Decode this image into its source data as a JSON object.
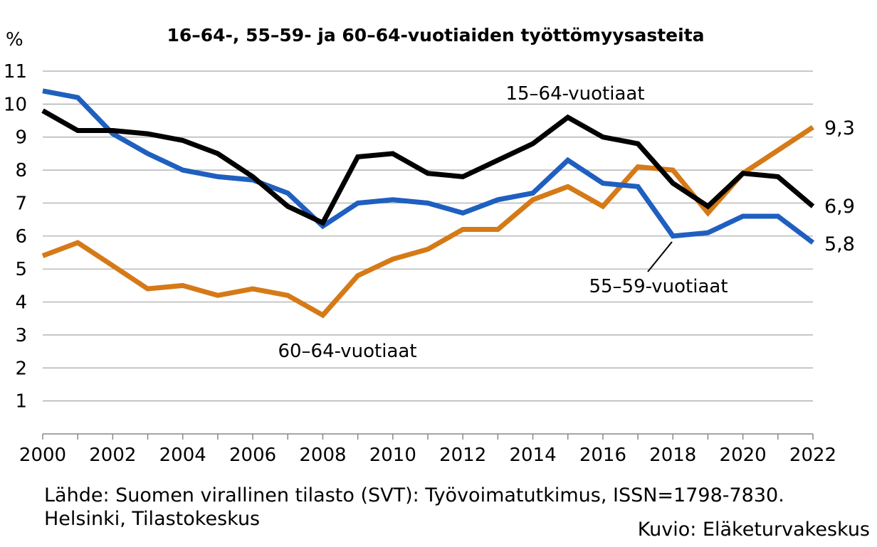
{
  "chart_data": {
    "type": "line",
    "title": "16–64-, 55–59- ja 60–64-vuotiaiden työttömyysasteita",
    "ylabel": "%",
    "xlabel": "",
    "ylim": [
      0,
      11
    ],
    "yticks": [
      "1",
      "2",
      "3",
      "4",
      "5",
      "6",
      "7",
      "8",
      "9",
      "10",
      "11"
    ],
    "xlim": [
      2000,
      2022
    ],
    "xticks": [
      "2000",
      "2002",
      "2004",
      "2006",
      "2008",
      "2010",
      "2012",
      "2014",
      "2016",
      "2018",
      "2020",
      "2022"
    ],
    "grid": true,
    "x": [
      2000,
      2001,
      2002,
      2003,
      2004,
      2005,
      2006,
      2007,
      2008,
      2009,
      2010,
      2011,
      2012,
      2013,
      2014,
      2015,
      2016,
      2017,
      2018,
      2019,
      2020,
      2021,
      2022
    ],
    "series": [
      {
        "name": "15–64-vuotiaat",
        "color": "#000000",
        "values": [
          9.8,
          9.2,
          9.2,
          9.1,
          8.9,
          8.5,
          7.8,
          6.9,
          6.4,
          8.4,
          8.5,
          7.9,
          7.8,
          8.3,
          8.8,
          9.6,
          9.0,
          8.8,
          7.6,
          6.9,
          7.9,
          7.8,
          6.9
        ],
        "end_label": "6,9"
      },
      {
        "name": "55–59-vuotiaat",
        "color": "#1f5fbf",
        "values": [
          10.4,
          10.2,
          9.1,
          8.5,
          8.0,
          7.8,
          7.7,
          7.3,
          6.3,
          7.0,
          7.1,
          7.0,
          6.7,
          7.1,
          7.3,
          8.3,
          7.6,
          7.5,
          6.0,
          6.1,
          6.6,
          6.6,
          5.8
        ],
        "end_label": "5,8"
      },
      {
        "name": "60–64-vuotiaat",
        "color": "#d57a17",
        "values": [
          5.4,
          5.8,
          5.1,
          4.4,
          4.5,
          4.2,
          4.4,
          4.2,
          3.6,
          4.8,
          5.3,
          5.6,
          6.2,
          6.2,
          7.1,
          7.5,
          6.9,
          8.1,
          8.0,
          6.7,
          7.9,
          8.6,
          9.3
        ],
        "end_label": "9,3"
      }
    ]
  },
  "source": "Lähde: Suomen virallinen tilasto (SVT): Työvoimatutkimus, ISSN=1798-7830.\nHelsinki, Tilastokeskus",
  "credit": "Kuvio: Eläketurvakeskus"
}
